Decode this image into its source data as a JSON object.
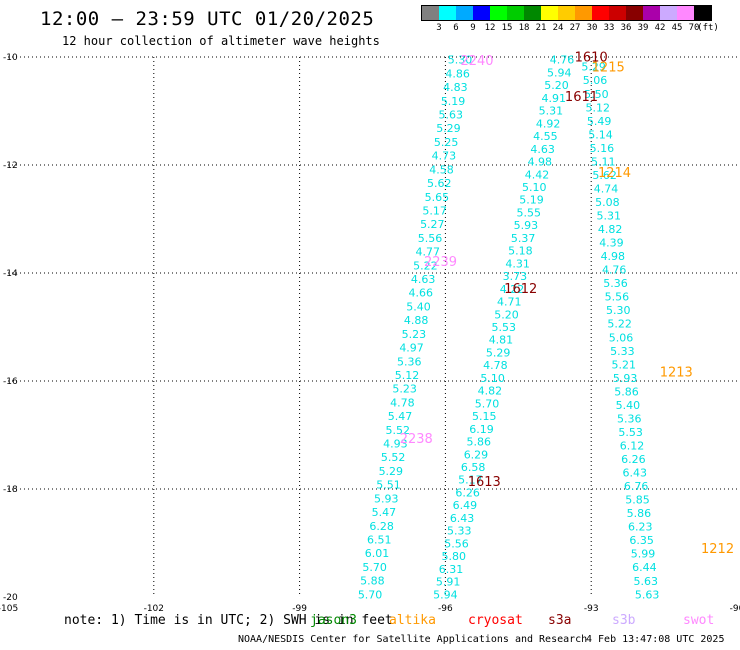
{
  "header": {
    "title": "12:00 – 23:59 UTC 01/20/2025",
    "subtitle": "12 hour collection of altimeter wave heights"
  },
  "colorbar": {
    "unit": "(ft)",
    "bins": [
      {
        "label": "3",
        "color": "#808080"
      },
      {
        "label": "6",
        "color": "#00ffff"
      },
      {
        "label": "9",
        "color": "#00aaff"
      },
      {
        "label": "12",
        "color": "#0000ff"
      },
      {
        "label": "15",
        "color": "#00ff00"
      },
      {
        "label": "18",
        "color": "#00cc00"
      },
      {
        "label": "21",
        "color": "#008800"
      },
      {
        "label": "24",
        "color": "#ffff00"
      },
      {
        "label": "27",
        "color": "#ffcc00"
      },
      {
        "label": "30",
        "color": "#ff9900"
      },
      {
        "label": "33",
        "color": "#ff0000"
      },
      {
        "label": "36",
        "color": "#cc0000"
      },
      {
        "label": "39",
        "color": "#880000"
      },
      {
        "label": "42",
        "color": "#aa00aa"
      },
      {
        "label": "45",
        "color": "#ccaaff"
      },
      {
        "label": "70",
        "color": "#ff88ff"
      },
      {
        "label": "",
        "color": "#000000"
      }
    ]
  },
  "footer": {
    "note": "note: 1) Time is in UTC; 2) SWH is in feet",
    "credit": "NOAA/NESDIS Center for Satellite Applications and Research",
    "timestamp": "4 Feb 13:47:08 UTC 2025",
    "satellites": [
      {
        "name": "jason3",
        "color": "#008800"
      },
      {
        "name": "altika",
        "color": "#ff9900"
      },
      {
        "name": "cryosat",
        "color": "#ff0000"
      },
      {
        "name": "s3a",
        "color": "#880000"
      },
      {
        "name": "s3b",
        "color": "#ccaaff"
      },
      {
        "name": "swot",
        "color": "#ff88ff"
      }
    ]
  },
  "chart_data": {
    "type": "scatter",
    "title": "12:00 – 23:59 UTC 01/20/2025",
    "xlabel": "",
    "ylabel": "",
    "xlim": [
      -105,
      -90
    ],
    "ylim": [
      -20,
      -10
    ],
    "grid": true,
    "x_ticks": [
      -105,
      -102,
      -99,
      -96,
      -93,
      -90
    ],
    "y_ticks": [
      -10,
      -12,
      -14,
      -16,
      -18,
      -20
    ],
    "tracks": [
      {
        "color": "#00e0e0",
        "start": [
          -95.7,
          -10.05
        ],
        "end": [
          -97.55,
          -19.95
        ],
        "values": [
          "5.30",
          "4.86",
          "4.83",
          "5.19",
          "5.63",
          "5.29",
          "5.25",
          "4.73",
          "4.58",
          "5.62",
          "5.65",
          "5.17",
          "5.27",
          "5.56",
          "4.77",
          "5.22",
          "4.63",
          "4.66",
          "5.40",
          "4.88",
          "5.23",
          "4.97",
          "5.36",
          "5.12",
          "5.23",
          "4.78",
          "5.47",
          "5.52",
          "4.93",
          "5.52",
          "5.29",
          "5.51",
          "5.93",
          "5.47",
          "6.28",
          "6.51",
          "6.01",
          "5.70",
          "5.88",
          "5.70"
        ]
      },
      {
        "color": "#00e0e0",
        "start": [
          -93.6,
          -10.05
        ],
        "end": [
          -96.0,
          -19.95
        ],
        "values": [
          "4.76",
          "5.94",
          "5.20",
          "4.91",
          "5.31",
          "4.92",
          "4.55",
          "4.63",
          "4.98",
          "4.42",
          "5.10",
          "5.19",
          "5.55",
          "5.93",
          "5.37",
          "5.18",
          "4.31",
          "3.73",
          "4.22",
          "4.71",
          "5.20",
          "5.53",
          "4.81",
          "5.29",
          "4.78",
          "5.10",
          "4.82",
          "5.70",
          "5.15",
          "6.19",
          "5.86",
          "6.29",
          "6.58",
          "5.17",
          "6.26",
          "6.49",
          "6.43",
          "5.33",
          "5.56",
          "5.80",
          "6.31",
          "5.91",
          "5.94"
        ]
      },
      {
        "color": "#00e0e0",
        "start": [
          -92.95,
          -10.18
        ],
        "end": [
          -91.85,
          -19.95
        ],
        "values": [
          "5.29",
          "5.06",
          "5.50",
          "5.12",
          "5.49",
          "5.14",
          "5.16",
          "5.11",
          "5.62",
          "4.74",
          "5.08",
          "5.31",
          "4.82",
          "4.39",
          "4.98",
          "4.76",
          "5.36",
          "5.56",
          "5.30",
          "5.22",
          "5.06",
          "5.33",
          "5.21",
          "5.93",
          "5.86",
          "5.40",
          "5.36",
          "5.53",
          "6.12",
          "6.26",
          "6.43",
          "6.76",
          "5.85",
          "5.86",
          "6.23",
          "6.35",
          "5.99",
          "6.44",
          "5.63",
          "5.63"
        ]
      }
    ],
    "annotations": [
      {
        "text": "2240",
        "color": "#ff88ff",
        "x": -95.35,
        "y": -10.06
      },
      {
        "text": "2239",
        "color": "#ff88ff",
        "x": -96.1,
        "y": -13.78
      },
      {
        "text": "2238",
        "color": "#ff88ff",
        "x": -96.6,
        "y": -17.06
      },
      {
        "text": "1610",
        "color": "#880000",
        "x": -93.0,
        "y": -9.99
      },
      {
        "text": "1611",
        "color": "#880000",
        "x": -93.2,
        "y": -10.72
      },
      {
        "text": "1612",
        "color": "#880000",
        "x": -94.45,
        "y": -14.28
      },
      {
        "text": "1613",
        "color": "#880000",
        "x": -95.2,
        "y": -17.85
      },
      {
        "text": "1215",
        "color": "#ff9900",
        "x": -92.65,
        "y": -10.18
      },
      {
        "text": "1214",
        "color": "#ff9900",
        "x": -92.52,
        "y": -12.13
      },
      {
        "text": "1213",
        "color": "#ff9900",
        "x": -91.25,
        "y": -15.82
      },
      {
        "text": "1212",
        "color": "#ff9900",
        "x": -90.4,
        "y": -19.09
      }
    ]
  }
}
